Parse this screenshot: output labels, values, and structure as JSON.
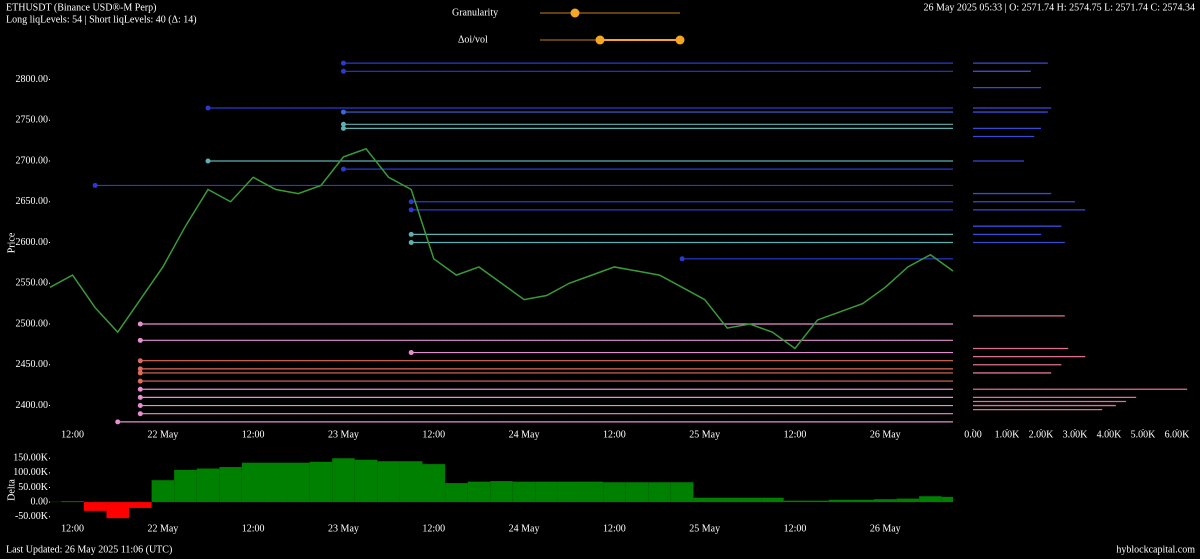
{
  "header": {
    "title": "ETHUSDT (Binance USD®-M Perp)",
    "levels": "Long liqLevels: 54 | Short liqLevels: 40 (Δ: 14)",
    "ohlc": "26 May 2025 05:33 | O: 2571.74 H: 2574.75 L: 2571.74 C: 2574.34"
  },
  "controls": {
    "granularity": "Granularity",
    "oi_vol": "Δoi/vol"
  },
  "footer": {
    "updated": "Last Updated: 26 May 2025 11:06 (UTC)",
    "site": "hyblockcapital.com"
  },
  "chart_data": [
    {
      "type": "line",
      "y_label": "Price",
      "color": "#3a9a3a",
      "categories": [
        null,
        "12:00",
        null,
        null,
        null,
        "22 May",
        null,
        null,
        null,
        "12:00",
        null,
        null,
        null,
        "23 May",
        null,
        null,
        null,
        "12:00",
        null,
        null,
        null,
        "24 May",
        null,
        null,
        null,
        "12:00",
        null,
        null,
        null,
        "25 May",
        null,
        null,
        null,
        "12:00",
        null,
        null,
        null,
        "26 May",
        null,
        null,
        null
      ],
      "values": [
        2545,
        2560,
        2520,
        2490,
        2530,
        2570,
        2620,
        2665,
        2650,
        2680,
        2665,
        2660,
        2670,
        2705,
        2715,
        2680,
        2665,
        2580,
        2560,
        2570,
        2550,
        2530,
        2535,
        2550,
        2560,
        2570,
        2565,
        2560,
        2545,
        2530,
        2495,
        2500,
        2490,
        2470,
        2505,
        2515,
        2525,
        2545,
        2570,
        2585,
        2565
      ],
      "ylim": [
        2370,
        2830
      ],
      "yticks": [
        {
          "value": 2400,
          "label": "2400.00"
        },
        {
          "value": 2450,
          "label": "2450.00"
        },
        {
          "value": 2500,
          "label": "2500.00"
        },
        {
          "value": 2550,
          "label": "2550.00"
        },
        {
          "value": 2600,
          "label": "2600.00"
        },
        {
          "value": 2650,
          "label": "2650.00"
        },
        {
          "value": 2700,
          "label": "2700.00"
        },
        {
          "value": 2750,
          "label": "2750.00"
        },
        {
          "value": 2800,
          "label": "2800.00"
        }
      ],
      "levels": [
        {
          "value": 2820,
          "start": 13,
          "color": "#2a3ad0"
        },
        {
          "value": 2810,
          "start": 13,
          "color": "#2a3ad0"
        },
        {
          "value": 2765,
          "start": 7,
          "color": "#2a3ad0"
        },
        {
          "value": 2760,
          "start": 13,
          "color": "#3a6ad0"
        },
        {
          "value": 2745,
          "start": 13,
          "color": "#5fb0b0"
        },
        {
          "value": 2740,
          "start": 13,
          "color": "#5fb0b0"
        },
        {
          "value": 2700,
          "start": 7,
          "color": "#5fb0b0"
        },
        {
          "value": 2690,
          "start": 13,
          "color": "#2a3ad0"
        },
        {
          "value": 2670,
          "start": 2,
          "color": "#2a3ad0"
        },
        {
          "value": 2650,
          "start": 16,
          "color": "#2a3ad0"
        },
        {
          "value": 2640,
          "start": 16,
          "color": "#2a3ad0"
        },
        {
          "value": 2610,
          "start": 16,
          "color": "#5fb0b0"
        },
        {
          "value": 2600,
          "start": 16,
          "color": "#5fb0b0"
        },
        {
          "value": 2580,
          "start": 28,
          "color": "#2a3ad0"
        },
        {
          "value": 2500,
          "start": 4,
          "color": "#e58fd0"
        },
        {
          "value": 2480,
          "start": 4,
          "color": "#e58fd0"
        },
        {
          "value": 2465,
          "start": 16,
          "color": "#e58fd0"
        },
        {
          "value": 2455,
          "start": 4,
          "color": "#e06b5a"
        },
        {
          "value": 2445,
          "start": 4,
          "color": "#e06b5a"
        },
        {
          "value": 2440,
          "start": 4,
          "color": "#e06b5a"
        },
        {
          "value": 2430,
          "start": 4,
          "color": "#e06b5a"
        },
        {
          "value": 2420,
          "start": 4,
          "color": "#e58fd0"
        },
        {
          "value": 2410,
          "start": 4,
          "color": "#e58fd0"
        },
        {
          "value": 2400,
          "start": 4,
          "color": "#e58fd0"
        },
        {
          "value": 2390,
          "start": 4,
          "color": "#e58fd0"
        },
        {
          "value": 2380,
          "start": 3,
          "color": "#e58fd0"
        }
      ]
    },
    {
      "type": "barh",
      "ylim": [
        2370,
        2830
      ],
      "xlim": [
        0,
        6500
      ],
      "xticks": [
        {
          "value": 0,
          "label": "0.00"
        },
        {
          "value": 1000,
          "label": "1.00K"
        },
        {
          "value": 2000,
          "label": "2.00K"
        },
        {
          "value": 3000,
          "label": "3.00K"
        },
        {
          "value": 4000,
          "label": "4.00K"
        },
        {
          "value": 5000,
          "label": "5.00K"
        },
        {
          "value": 6000,
          "label": "6.00K"
        }
      ],
      "series": [
        {
          "color": "#3a4ad8",
          "y": [
            2820,
            2810,
            2790,
            2765,
            2760,
            2740,
            2730,
            2700,
            2660,
            2650,
            2640,
            2620,
            2610,
            2600
          ],
          "values": [
            2200,
            1700,
            2000,
            2300,
            2200,
            2000,
            1800,
            1500,
            2300,
            3000,
            3300,
            2600,
            2000,
            2700
          ]
        },
        {
          "color": "#e07090",
          "y": [
            2510,
            2470,
            2460,
            2450,
            2440,
            2420,
            2410,
            2405,
            2400,
            2395
          ],
          "values": [
            2700,
            2800,
            3300,
            2600,
            2300,
            6300,
            4800,
            4500,
            4200,
            3800
          ]
        }
      ]
    },
    {
      "type": "bar",
      "y_label": "Delta",
      "color": "#008000",
      "negative_color": "#ff0000",
      "categories": [
        null,
        "12:00",
        null,
        null,
        null,
        "22 May",
        null,
        null,
        null,
        "12:00",
        null,
        null,
        null,
        "23 May",
        null,
        null,
        null,
        "12:00",
        null,
        null,
        null,
        "24 May",
        null,
        null,
        null,
        "12:00",
        null,
        null,
        null,
        "25 May",
        null,
        null,
        null,
        "12:00",
        null,
        null,
        null,
        "26 May",
        null,
        null,
        null
      ],
      "values": [
        1000,
        3000,
        -30000,
        -55000,
        -20000,
        75000,
        110000,
        115000,
        120000,
        135000,
        135000,
        135000,
        138000,
        150000,
        145000,
        140000,
        140000,
        130000,
        65000,
        70000,
        72000,
        70000,
        70000,
        70000,
        70000,
        68000,
        68000,
        68000,
        68000,
        15000,
        15000,
        15000,
        15000,
        5000,
        5000,
        8000,
        8000,
        10000,
        12000,
        20000,
        18000
      ],
      "ylim": [
        -75000,
        175000
      ],
      "yticks": [
        {
          "value": -50000,
          "label": "-50.00K"
        },
        {
          "value": 0,
          "label": "0.00"
        },
        {
          "value": 50000,
          "label": "50.00K"
        },
        {
          "value": 100000,
          "label": "100.00K"
        },
        {
          "value": 150000,
          "label": "150.00K"
        }
      ]
    }
  ]
}
